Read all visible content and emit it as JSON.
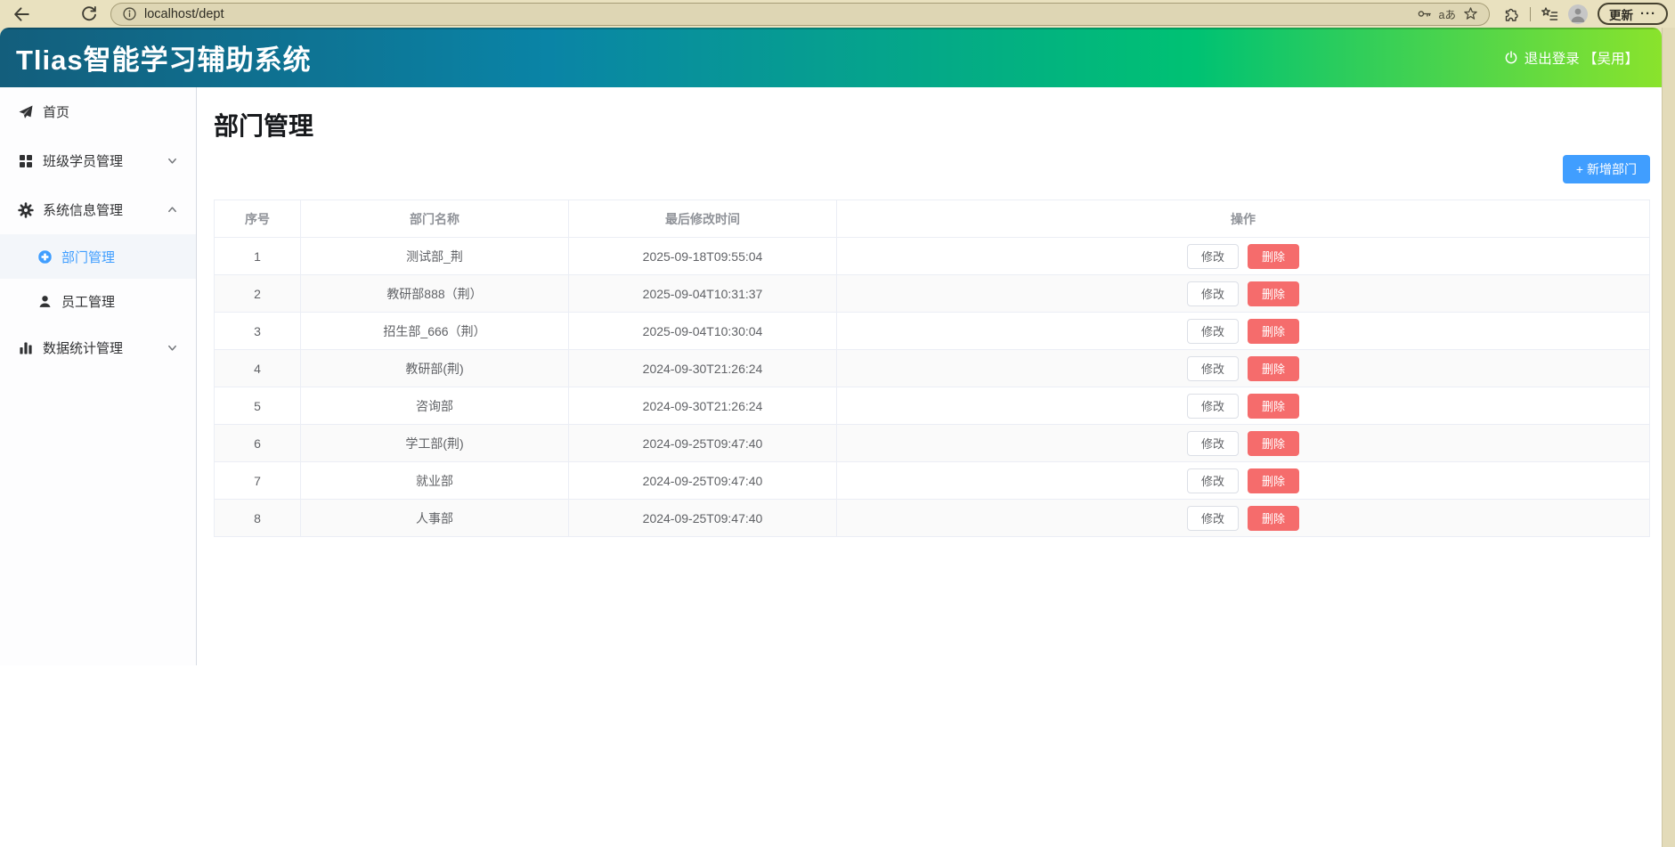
{
  "browser": {
    "url": "localhost/dept",
    "translate_label": "aあ",
    "update_label": "更新",
    "update_dots": "···"
  },
  "header": {
    "title": "Tlias智能学习辅助系统",
    "logout_label": "退出登录 【吴用】",
    "gradient_start": "#135e7c",
    "gradient_end": "#8ae32c"
  },
  "sidebar": {
    "items": [
      {
        "label": "首页",
        "icon": "promotion-icon"
      },
      {
        "label": "班级学员管理",
        "icon": "grid-icon",
        "chevron": "down"
      },
      {
        "label": "系统信息管理",
        "icon": "gear-icon",
        "chevron": "up",
        "children": [
          {
            "label": "部门管理",
            "icon": "help-filled-icon",
            "active": true
          },
          {
            "label": "员工管理",
            "icon": "user-icon",
            "active": false
          }
        ]
      },
      {
        "label": "数据统计管理",
        "icon": "histogram-icon",
        "chevron": "down"
      }
    ]
  },
  "main": {
    "page_title": "部门管理",
    "add_button_label": "+ 新增部门",
    "table": {
      "columns": [
        "序号",
        "部门名称",
        "最后修改时间",
        "操作"
      ],
      "edit_label": "修改",
      "delete_label": "删除",
      "rows": [
        {
          "index": "1",
          "name": "测试部_荆",
          "time": "2025-09-18T09:55:04"
        },
        {
          "index": "2",
          "name": "教研部888（荆）",
          "time": "2025-09-04T10:31:37"
        },
        {
          "index": "3",
          "name": "招生部_666（荆）",
          "time": "2025-09-04T10:30:04"
        },
        {
          "index": "4",
          "name": "教研部(荆)",
          "time": "2024-09-30T21:26:24"
        },
        {
          "index": "5",
          "name": "咨询部",
          "time": "2024-09-30T21:26:24"
        },
        {
          "index": "6",
          "name": "学工部(荆)",
          "time": "2024-09-25T09:47:40"
        },
        {
          "index": "7",
          "name": "就业部",
          "time": "2024-09-25T09:47:40"
        },
        {
          "index": "8",
          "name": "人事部",
          "time": "2024-09-25T09:47:40"
        }
      ]
    }
  },
  "colors": {
    "accent_blue": "#409eff",
    "danger_red": "#f56c6c",
    "table_border": "#ebeef5",
    "table_header_text": "#909399",
    "table_cell_text": "#606266",
    "chrome_beige": "#e9e1bf"
  }
}
